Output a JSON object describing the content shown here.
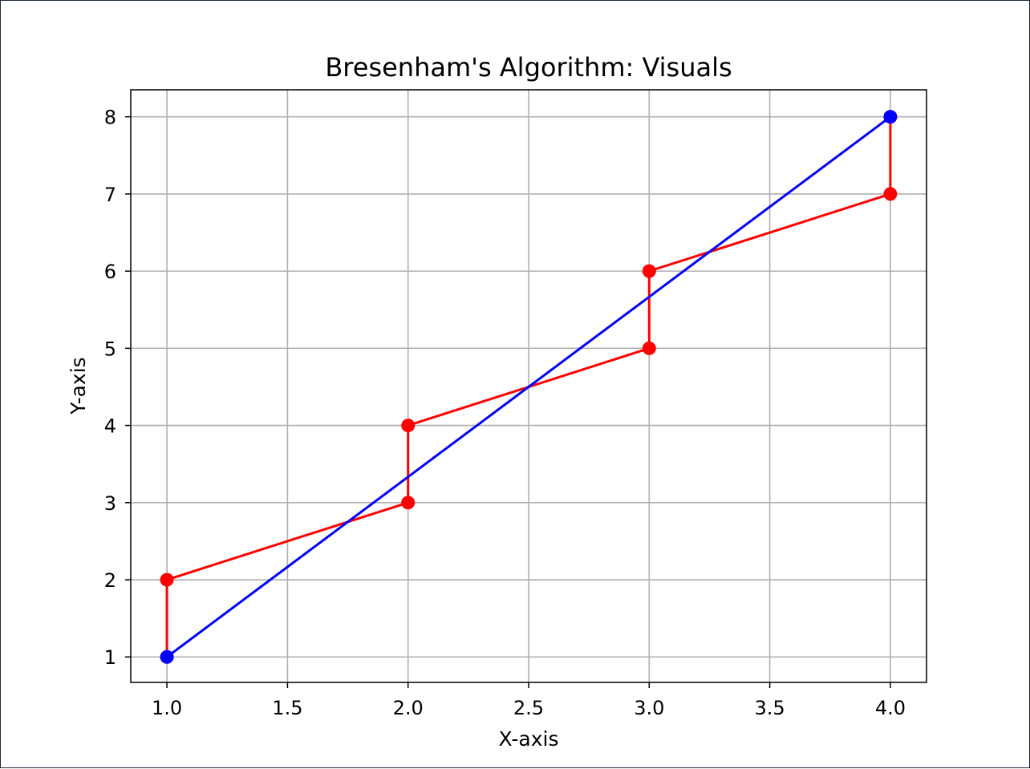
{
  "chart_data": {
    "type": "line",
    "title": "Bresenham's Algorithm: Visuals",
    "xlabel": "X-axis",
    "ylabel": "Y-axis",
    "xlim": [
      0.85,
      4.15
    ],
    "ylim": [
      0.67,
      8.35
    ],
    "xticks": [
      "1.0",
      "1.5",
      "2.0",
      "2.5",
      "3.0",
      "3.5",
      "4.0"
    ],
    "yticks": [
      "1",
      "2",
      "3",
      "4",
      "5",
      "6",
      "7",
      "8"
    ],
    "grid": true,
    "series": [
      {
        "color": "#ff0000",
        "marker": "circle",
        "x": [
          1,
          1,
          2,
          2,
          3,
          3,
          4,
          4
        ],
        "y": [
          1,
          2,
          3,
          4,
          5,
          6,
          7,
          8
        ]
      },
      {
        "color": "#0000ff",
        "marker": "circle",
        "x": [
          1,
          4
        ],
        "y": [
          1,
          8
        ]
      }
    ]
  }
}
